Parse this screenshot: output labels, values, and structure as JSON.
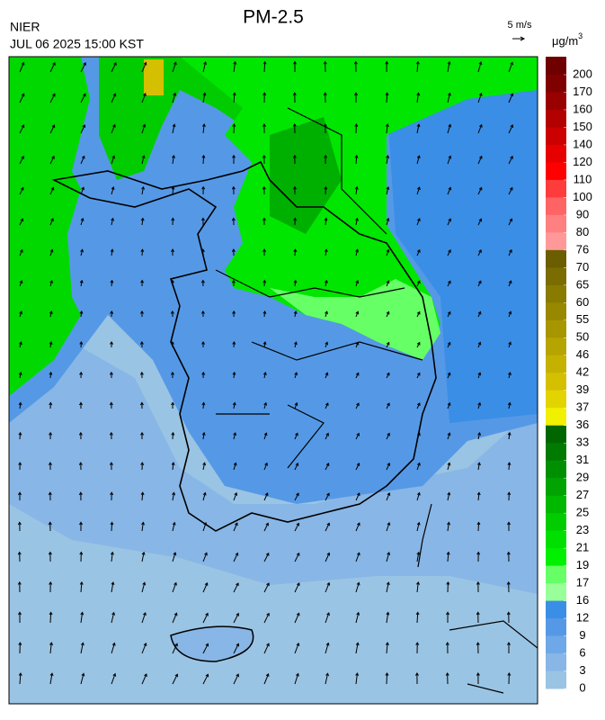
{
  "header": {
    "agency": "NIER",
    "timestamp": "JUL 06 2025 15:00 KST",
    "title": "PM-2.5"
  },
  "wind_scale": {
    "label": "5 m/s"
  },
  "colorbar": {
    "unit": "μg/m",
    "unit_sup": "3",
    "ticks": [
      200,
      170,
      160,
      150,
      140,
      120,
      110,
      100,
      90,
      80,
      76,
      70,
      65,
      60,
      55,
      50,
      46,
      42,
      39,
      37,
      36,
      33,
      31,
      29,
      27,
      25,
      23,
      21,
      19,
      17,
      16,
      12,
      9,
      6,
      3,
      0
    ],
    "colors": [
      "#6e0000",
      "#800000",
      "#990000",
      "#b30000",
      "#cc0000",
      "#e60000",
      "#ff0000",
      "#ff3c3c",
      "#ff6464",
      "#ff8080",
      "#ff9999",
      "#6b5e00",
      "#7a6c00",
      "#897a00",
      "#988800",
      "#a79600",
      "#b6a400",
      "#c5b200",
      "#d4c000",
      "#e3d400",
      "#f0f000",
      "#006600",
      "#007a00",
      "#008f00",
      "#00a300",
      "#00b800",
      "#00cc00",
      "#00e000",
      "#00f000",
      "#66ff66",
      "#99ff99",
      "#3a8ee6",
      "#5599e6",
      "#6fa8e8",
      "#88b6e6",
      "#9ac4e3"
    ]
  }
}
